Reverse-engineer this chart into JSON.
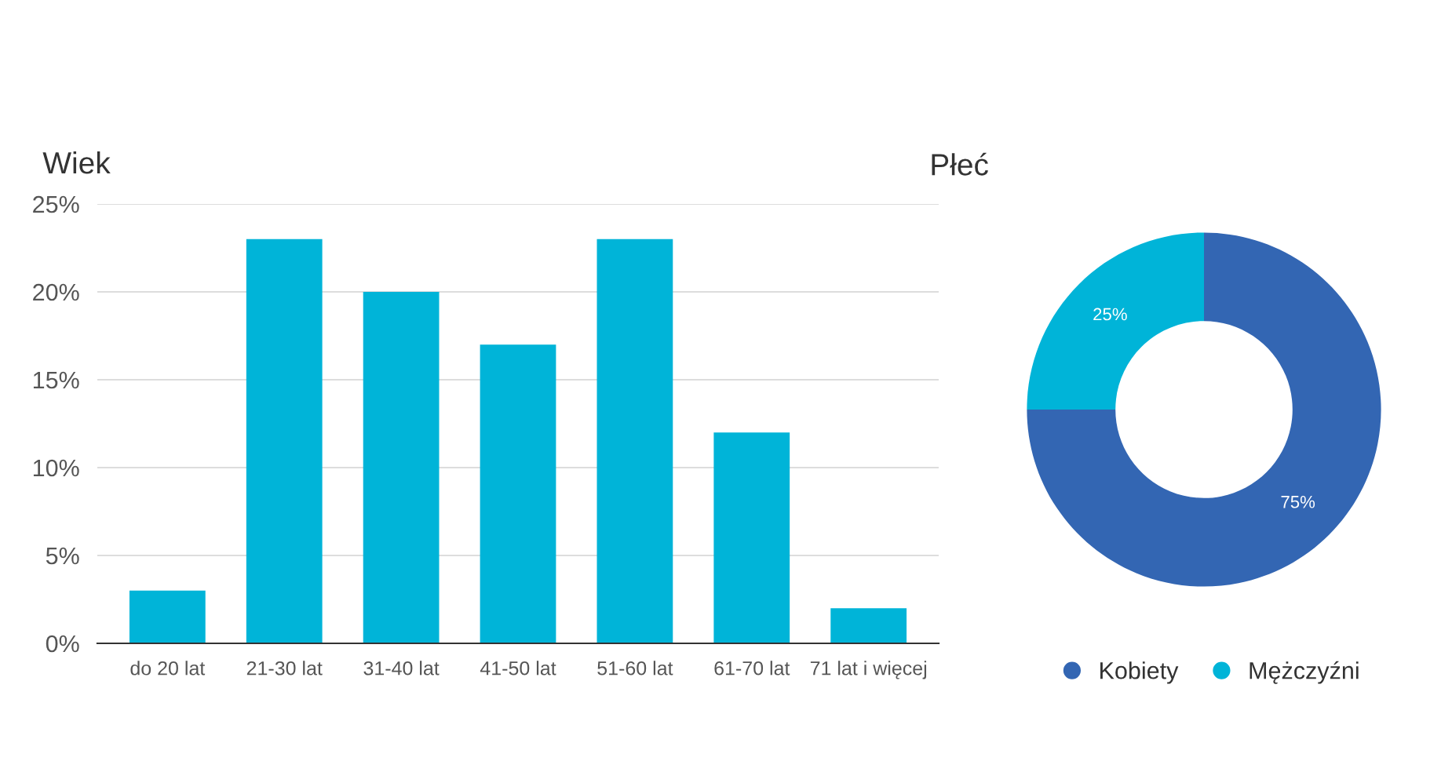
{
  "chart_data": [
    {
      "type": "bar",
      "title": "Wiek",
      "categories": [
        "do 20 lat",
        "21-30 lat",
        "31-40 lat",
        "41-50 lat",
        "51-60 lat",
        "61-70 lat",
        "71 lat i więcej"
      ],
      "values": [
        3,
        23,
        20,
        17,
        23,
        12,
        2
      ],
      "color": "#00b4d8",
      "ylim": [
        0,
        25
      ],
      "yticks": [
        {
          "value": 0,
          "label": "0%"
        },
        {
          "value": 5,
          "label": "5%"
        },
        {
          "value": 10,
          "label": "10%"
        },
        {
          "value": 15,
          "label": "15%"
        },
        {
          "value": 20,
          "label": "20%"
        },
        {
          "value": 25,
          "label": "25%"
        }
      ],
      "grid": "y",
      "legend": false
    },
    {
      "type": "donut",
      "title": "Płeć",
      "categories": [
        "Kobiety",
        "Mężczyźni"
      ],
      "values": [
        75,
        25
      ],
      "colors": [
        "#3366b3",
        "#00b4d8"
      ],
      "value_labels": [
        "75%",
        "25%"
      ],
      "legend": "bottom"
    }
  ]
}
